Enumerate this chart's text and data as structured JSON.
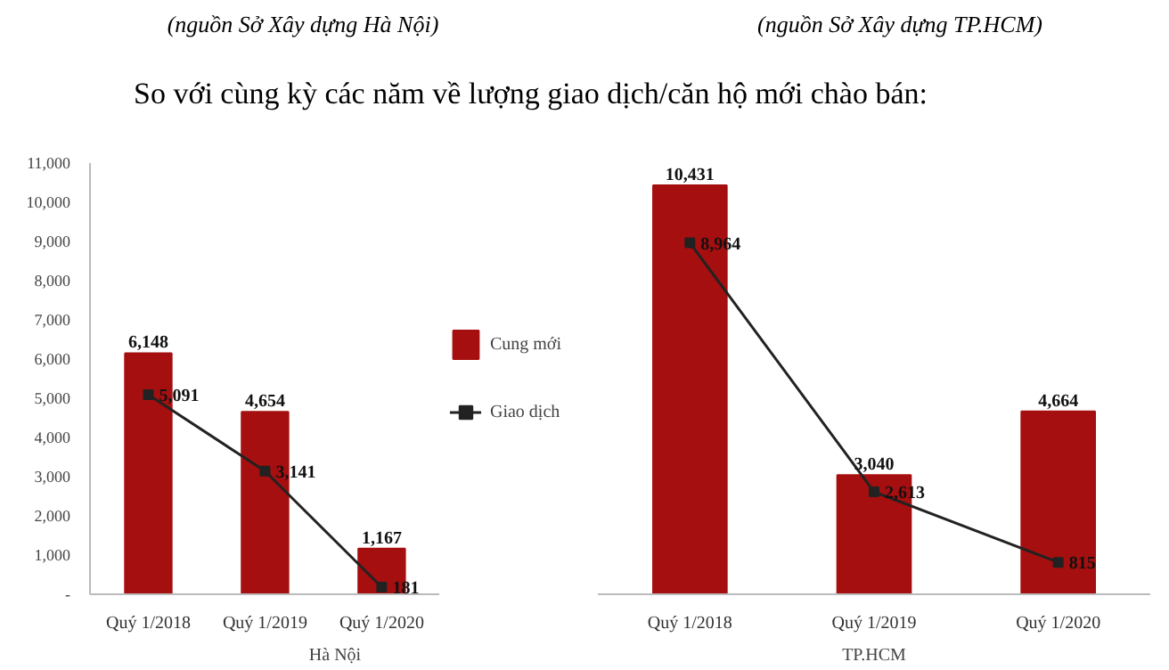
{
  "chart_data": [
    {
      "type": "bar",
      "title": "So với cùng kỳ các năm về lượng giao dịch/căn hộ mới chào bán:",
      "annotations": [
        "(nguồn Sở Xây dựng Hà Nội)"
      ],
      "xlabel": "Hà Nội",
      "categories": [
        "Quý 1/2018",
        "Quý 1/2019",
        "Quý 1/2020"
      ],
      "series": [
        {
          "name": "Cung mới",
          "color": "#a50f0f",
          "values": [
            6148,
            4654,
            1167
          ],
          "value_labels": [
            "6,148",
            "4,654",
            "1,167"
          ]
        },
        {
          "name": "Giao dịch",
          "type": "line",
          "color": "#222222",
          "values": [
            5091,
            3141,
            181
          ],
          "value_labels": [
            "5,091",
            "3,141",
            "181"
          ]
        }
      ],
      "ylim": [
        0,
        11000
      ],
      "yticks": [
        {
          "value": 0,
          "label": "-"
        },
        {
          "value": 1000,
          "label": "1,000"
        },
        {
          "value": 2000,
          "label": "2,000"
        },
        {
          "value": 3000,
          "label": "3,000"
        },
        {
          "value": 4000,
          "label": "4,000"
        },
        {
          "value": 5000,
          "label": "5,000"
        },
        {
          "value": 6000,
          "label": "6,000"
        },
        {
          "value": 7000,
          "label": "7,000"
        },
        {
          "value": 8000,
          "label": "8,000"
        },
        {
          "value": 9000,
          "label": "9,000"
        },
        {
          "value": 10000,
          "label": "10,000"
        },
        {
          "value": 11000,
          "label": "11,000"
        }
      ],
      "marker": "square",
      "legend": "right",
      "grid": false
    },
    {
      "type": "bar",
      "annotations": [
        "(nguồn Sở Xây dựng TP.HCM)"
      ],
      "xlabel": "TP.HCM",
      "categories": [
        "Quý 1/2018",
        "Quý 1/2019",
        "Quý 1/2020"
      ],
      "series": [
        {
          "color": "#a50f0f",
          "values": [
            10431,
            3040,
            4664
          ],
          "value_labels": [
            "10,431",
            "3,040",
            "4,664"
          ]
        },
        {
          "type": "line",
          "color": "#222222",
          "values": [
            8964,
            2613,
            815
          ],
          "value_labels": [
            "8,964",
            "2,613",
            "815"
          ]
        }
      ],
      "ylim": [
        0,
        11000
      ],
      "tick_labels": "x",
      "marker": "square",
      "grid": false
    }
  ]
}
